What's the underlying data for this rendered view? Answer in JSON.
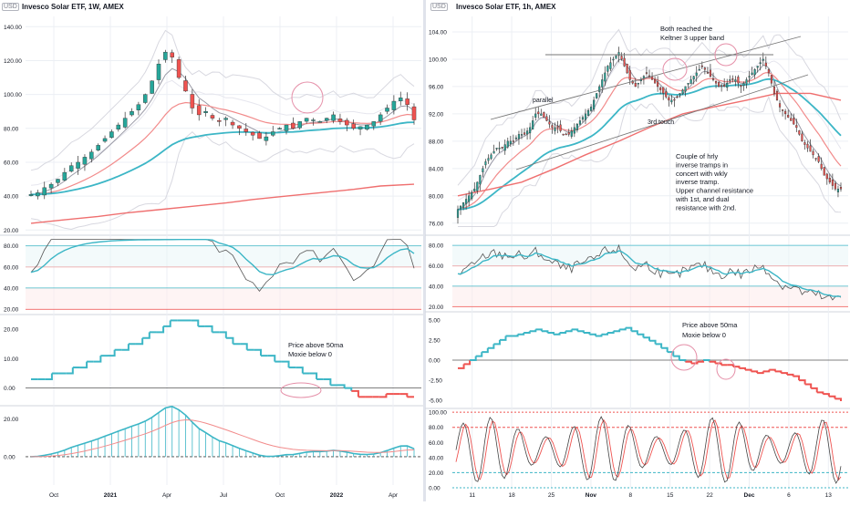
{
  "left": {
    "usd": "USD",
    "title": "Invesco Solar ETF, 1W, AMEX",
    "xticks": [
      "Oct",
      "2021",
      "Apr",
      "Jul",
      "Oct",
      "2022",
      "Apr"
    ],
    "notes": [
      "Price above 50ma",
      "Moxie below 0"
    ]
  },
  "right": {
    "usd": "USD",
    "title": "Invesco Solar ETF, 1h, AMEX",
    "xticks": [
      "11",
      "18",
      "25",
      "Nov",
      "8",
      "15",
      "22",
      "Dec",
      "6",
      "13"
    ],
    "annotations": {
      "keltner": [
        "Both reached the",
        "Keltner 3 upper band"
      ],
      "parallel": "parallel",
      "third_touch": "3rd touch",
      "comment": [
        "Couple of hrly",
        "inverse tramps in",
        "concert with wkly",
        "inverse tramp.",
        "Upper channel resistance",
        "with 1st, and dual",
        "resistance with 2nd."
      ],
      "moxie": [
        "Price above 50ma",
        "Moxie below 0"
      ]
    }
  },
  "colors": {
    "up": "#26a69a",
    "down": "#ef5350",
    "cyan": "#3cb6c6",
    "pink": "#f28b8b",
    "grid": "#eceff4",
    "axis": "#787b86",
    "circle": "#e58fa8"
  },
  "chart_data": [
    {
      "type": "candlestick",
      "title": "Invesco Solar ETF, 1W, AMEX",
      "interval": "1W",
      "x_axis_ticks": [
        "Oct",
        "2021",
        "Apr",
        "Jul",
        "Oct",
        "2022",
        "Apr"
      ],
      "price_axis": {
        "ticks": [
          20,
          40,
          60,
          80,
          100,
          120,
          140
        ],
        "range": [
          18,
          145
        ]
      },
      "close_weekly": [
        41,
        42,
        45,
        47,
        50,
        54,
        58,
        60,
        63,
        66,
        70,
        74,
        78,
        82,
        86,
        90,
        94,
        100,
        108,
        118,
        125,
        122,
        110,
        102,
        92,
        88,
        90,
        86,
        84,
        86,
        82,
        80,
        78,
        76,
        74,
        75,
        78,
        80,
        82,
        80,
        84,
        86,
        85,
        84,
        86,
        88,
        84,
        82,
        80,
        81,
        82,
        84,
        88,
        92,
        96,
        98,
        94,
        85
      ],
      "overlays": [
        "Keltner bands",
        "moving averages (cyan, pink)",
        "50-week MA (red)"
      ],
      "panels": [
        {
          "name": "oscillator",
          "axis_ticks": [
            20,
            40,
            60,
            80
          ],
          "levels": [
            20,
            40,
            60,
            80
          ]
        },
        {
          "name": "moxie trend",
          "axis_ticks": [
            0,
            10,
            20
          ],
          "profile": [
            3,
            3,
            3,
            5,
            5,
            5,
            7,
            7,
            9,
            9,
            11,
            11,
            13,
            13,
            15,
            15,
            17,
            19,
            19,
            21,
            23,
            23,
            23,
            23,
            21,
            21,
            19,
            19,
            17,
            15,
            15,
            13,
            13,
            11,
            11,
            9,
            9,
            7,
            7,
            5,
            5,
            3,
            3,
            1,
            1,
            0,
            -1,
            -3,
            -3,
            -3,
            -3,
            -2,
            -2,
            -2,
            -3,
            -3
          ],
          "notes": [
            "Price above 50ma",
            "Moxie below 0"
          ]
        },
        {
          "name": "momentum histogram",
          "axis_ticks": [
            0,
            20
          ]
        }
      ]
    },
    {
      "type": "candlestick",
      "title": "Invesco Solar ETF, 1h, AMEX",
      "interval": "1h",
      "x_axis_ticks": [
        "11",
        "18",
        "25",
        "Nov",
        "8",
        "15",
        "22",
        "Dec",
        "6",
        "13"
      ],
      "price_axis": {
        "ticks": [
          76,
          80,
          84,
          88,
          92,
          96,
          100,
          104
        ],
        "range": [
          74.5,
          106
        ]
      },
      "close_hourly": [
        78,
        79,
        80,
        81,
        83,
        85,
        86,
        87,
        87,
        88,
        88,
        89,
        89,
        90,
        92,
        92,
        91,
        90,
        90,
        89,
        89,
        90,
        91,
        92,
        93,
        95,
        97,
        99,
        100,
        101,
        99,
        97,
        96,
        97,
        98,
        97,
        96,
        95,
        94,
        94,
        95,
        96,
        97,
        98,
        99,
        98,
        97,
        96,
        96,
        97,
        97,
        96,
        97,
        98,
        99,
        100,
        98,
        95,
        93,
        92,
        91,
        90,
        88,
        87,
        86,
        85,
        83,
        82,
        81,
        81
      ],
      "annotations": [
        "Both reached the Keltner 3 upper band",
        "parallel",
        "3rd touch",
        "Couple of hrly inverse tramps in concert with wkly inverse tramp. Upper channel resistance with 1st, and dual resistance with 2nd."
      ],
      "panels": [
        {
          "name": "oscillator",
          "axis_ticks": [
            20,
            40,
            60,
            80
          ],
          "levels": [
            20,
            40,
            60,
            80
          ]
        },
        {
          "name": "moxie trend",
          "axis_ticks": [
            -5,
            -2.5,
            0,
            2.5,
            5
          ],
          "profile": [
            -1,
            -0.5,
            0,
            0.5,
            1,
            1.5,
            2,
            2.5,
            3,
            3,
            3.2,
            3.4,
            3.6,
            3.8,
            3.6,
            3.4,
            3.2,
            3.4,
            3.6,
            3.8,
            3.6,
            3.4,
            3.2,
            3,
            3.2,
            3.4,
            3.6,
            3.8,
            4,
            3.6,
            3.2,
            2.8,
            2.4,
            2,
            1.5,
            1,
            0.5,
            0,
            -0.2,
            -0.4,
            -0.2,
            0,
            -0.2,
            -0.4,
            -0.6,
            -0.6,
            -0.8,
            -1,
            -1.2,
            -1.4,
            -1.6,
            -1.4,
            -1.2,
            -1.4,
            -1.6,
            -1.8,
            -2,
            -2.5,
            -3,
            -3.5,
            -4,
            -4.2,
            -4.5,
            -4.8,
            -5.1
          ],
          "notes": [
            "Price above 50ma",
            "Moxie below 0"
          ]
        },
        {
          "name": "stochastic",
          "axis_ticks": [
            0,
            20,
            40,
            60,
            80,
            100
          ],
          "levels": [
            0,
            20,
            80,
            100
          ]
        }
      ]
    }
  ]
}
